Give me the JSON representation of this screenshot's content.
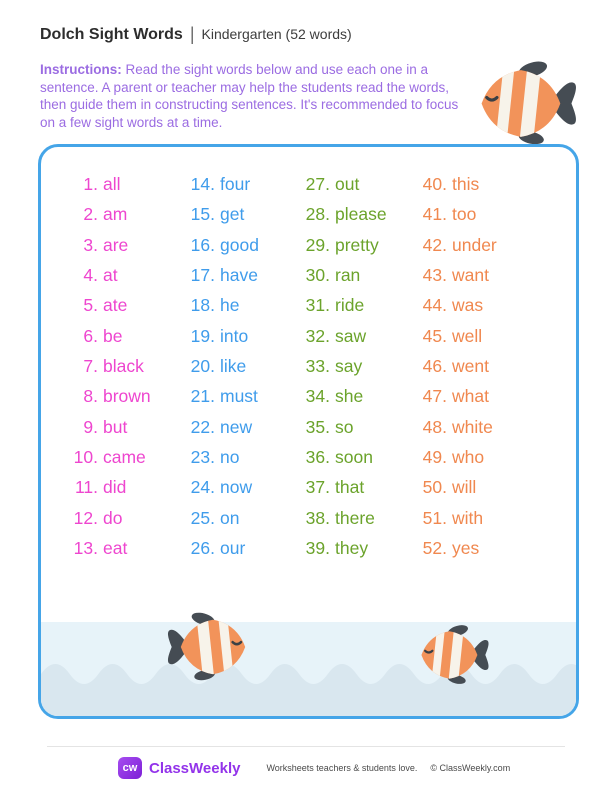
{
  "header": {
    "title": "Dolch Sight Words",
    "separator": "|",
    "subtitle": "Kindergarten (52 words)"
  },
  "instructions": {
    "label": "Instructions:",
    "text": "Read the sight words below and use each one in a sentence. A parent or teacher may help the students read the words, then guide them in constructing sentences. It's recommended to focus on a few sight words at a time."
  },
  "word_list": {
    "columns": [
      {
        "color": "#ee46cf",
        "items": [
          [
            "1.",
            "all"
          ],
          [
            "2.",
            "am"
          ],
          [
            "3.",
            "are"
          ],
          [
            "4.",
            "at"
          ],
          [
            "5.",
            "ate"
          ],
          [
            "6.",
            "be"
          ],
          [
            "7.",
            "black"
          ],
          [
            "8.",
            "brown"
          ],
          [
            "9.",
            "but"
          ],
          [
            "10.",
            "came"
          ],
          [
            "11.",
            "did"
          ],
          [
            "12.",
            "do"
          ],
          [
            "13.",
            "eat"
          ]
        ]
      },
      {
        "color": "#3f9ceb",
        "items": [
          [
            "14.",
            "four"
          ],
          [
            "15.",
            "get"
          ],
          [
            "16.",
            "good"
          ],
          [
            "17.",
            "have"
          ],
          [
            "18.",
            "he"
          ],
          [
            "19.",
            "into"
          ],
          [
            "20.",
            "like"
          ],
          [
            "21.",
            "must"
          ],
          [
            "22.",
            "new"
          ],
          [
            "23.",
            "no"
          ],
          [
            "24.",
            "now"
          ],
          [
            "25.",
            "on"
          ],
          [
            "26.",
            "our"
          ]
        ]
      },
      {
        "color": "#6ba32b",
        "items": [
          [
            "27.",
            "out"
          ],
          [
            "28.",
            "please"
          ],
          [
            "29.",
            "pretty"
          ],
          [
            "30.",
            "ran"
          ],
          [
            "31.",
            "ride"
          ],
          [
            "32.",
            "saw"
          ],
          [
            "33.",
            "say"
          ],
          [
            "34.",
            "she"
          ],
          [
            "35.",
            "so"
          ],
          [
            "36.",
            "soon"
          ],
          [
            "37.",
            "that"
          ],
          [
            "38.",
            "there"
          ],
          [
            "39.",
            "they"
          ]
        ]
      },
      {
        "color": "#f0884f",
        "items": [
          [
            "40.",
            "this"
          ],
          [
            "41.",
            "too"
          ],
          [
            "42.",
            "under"
          ],
          [
            "43.",
            "want"
          ],
          [
            "44.",
            "was"
          ],
          [
            "45.",
            "well"
          ],
          [
            "46.",
            "went"
          ],
          [
            "47.",
            "what"
          ],
          [
            "48.",
            "white"
          ],
          [
            "49.",
            "who"
          ],
          [
            "50.",
            "will"
          ],
          [
            "51.",
            "with"
          ],
          [
            "52.",
            "yes"
          ]
        ]
      }
    ]
  },
  "icons": {
    "fish": "clownfish-icon"
  },
  "colors": {
    "box_border": "#45a5e8",
    "instructions_text": "#9b6ce2",
    "water": "#e7f3f9",
    "wave": "#d9e7ef",
    "brand_purple": "#9333ea",
    "badge_gradient_start": "#a64df0",
    "badge_gradient_end": "#7d1fd6",
    "fish_body": "#f2935a",
    "fish_fin": "#454c53",
    "fish_stripe": "#f7f3ea"
  },
  "footer": {
    "logo_monogram": "cw",
    "brand": "ClassWeekly",
    "tagline": "Worksheets teachers & students love.",
    "copyright": "© ClassWeekly.com"
  }
}
